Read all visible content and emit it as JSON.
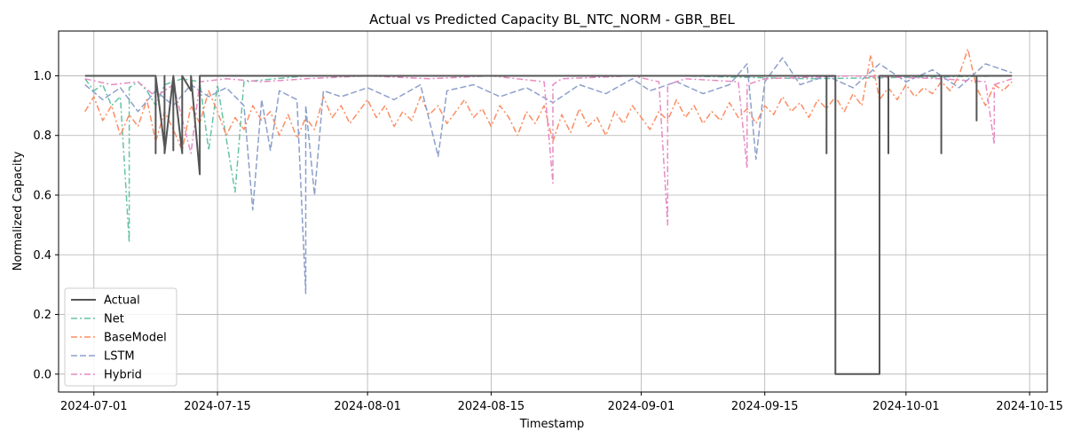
{
  "chart_data": {
    "type": "line",
    "title": "Actual vs Predicted Capacity BL_NTC_NORM - GBR_BEL",
    "xlabel": "Timestamp",
    "ylabel": "Normalized Capacity",
    "xlim": [
      "2024-06-27",
      "2024-10-17"
    ],
    "ylim": [
      -0.06,
      1.15
    ],
    "x_ticks": [
      "2024-07-01",
      "2024-07-15",
      "2024-08-01",
      "2024-08-15",
      "2024-09-01",
      "2024-09-15",
      "2024-10-01",
      "2024-10-15"
    ],
    "y_ticks": [
      0.0,
      0.2,
      0.4,
      0.6,
      0.8,
      1.0
    ],
    "y_tick_labels": [
      "0.0",
      "0.2",
      "0.4",
      "0.6",
      "0.8",
      "1.0"
    ],
    "grid": true,
    "legend_position": "lower-left",
    "series": [
      {
        "name": "Actual",
        "color": "#555555",
        "style": "solid",
        "points": [
          [
            "2024-06-30",
            1.0
          ],
          [
            "2024-07-08",
            1.0
          ],
          [
            "2024-07-08",
            0.74
          ],
          [
            "2024-07-08",
            1.0
          ],
          [
            "2024-07-09",
            0.76
          ],
          [
            "2024-07-09",
            1.0
          ],
          [
            "2024-07-09",
            0.74
          ],
          [
            "2024-07-10",
            1.0
          ],
          [
            "2024-07-10",
            0.75
          ],
          [
            "2024-07-10",
            1.0
          ],
          [
            "2024-07-11",
            0.74
          ],
          [
            "2024-07-11",
            1.0
          ],
          [
            "2024-07-12",
            0.95
          ],
          [
            "2024-07-12",
            1.0
          ],
          [
            "2024-07-13",
            0.67
          ],
          [
            "2024-07-13",
            1.0
          ],
          [
            "2024-09-22",
            1.0
          ],
          [
            "2024-09-22",
            0.74
          ],
          [
            "2024-09-22",
            1.0
          ],
          [
            "2024-09-23",
            1.0
          ],
          [
            "2024-09-23",
            0.0
          ],
          [
            "2024-09-28",
            0.0
          ],
          [
            "2024-09-28",
            1.0
          ],
          [
            "2024-09-29",
            1.0
          ],
          [
            "2024-09-29",
            0.74
          ],
          [
            "2024-09-29",
            1.0
          ],
          [
            "2024-10-05",
            1.0
          ],
          [
            "2024-10-05",
            0.74
          ],
          [
            "2024-10-05",
            1.0
          ],
          [
            "2024-10-09",
            1.0
          ],
          [
            "2024-10-09",
            0.85
          ],
          [
            "2024-10-09",
            1.0
          ],
          [
            "2024-10-13",
            1.0
          ]
        ]
      },
      {
        "name": "Net",
        "color": "#66c2a5",
        "style": "dashdot",
        "points": [
          [
            "2024-06-30",
            0.99
          ],
          [
            "2024-07-01",
            0.95
          ],
          [
            "2024-07-02",
            0.97
          ],
          [
            "2024-07-03",
            0.9
          ],
          [
            "2024-07-04",
            0.93
          ],
          [
            "2024-07-05",
            0.44
          ],
          [
            "2024-07-05",
            0.96
          ],
          [
            "2024-07-06",
            0.98
          ],
          [
            "2024-07-07",
            0.95
          ],
          [
            "2024-07-08",
            0.9
          ],
          [
            "2024-07-09",
            0.97
          ],
          [
            "2024-07-11",
            0.99
          ],
          [
            "2024-07-13",
            0.98
          ],
          [
            "2024-07-14",
            0.75
          ],
          [
            "2024-07-15",
            0.97
          ],
          [
            "2024-07-17",
            0.61
          ],
          [
            "2024-07-18",
            0.98
          ],
          [
            "2024-07-25",
            1.0
          ],
          [
            "2024-08-15",
            1.0
          ],
          [
            "2024-09-05",
            1.0
          ],
          [
            "2024-09-20",
            0.99
          ],
          [
            "2024-10-13",
            1.0
          ]
        ]
      },
      {
        "name": "BaseModel",
        "color": "#fc8d62",
        "style": "dashdot",
        "points": [
          [
            "2024-06-30",
            0.88
          ],
          [
            "2024-07-01",
            0.93
          ],
          [
            "2024-07-02",
            0.85
          ],
          [
            "2024-07-03",
            0.9
          ],
          [
            "2024-07-04",
            0.8
          ],
          [
            "2024-07-05",
            0.87
          ],
          [
            "2024-07-06",
            0.83
          ],
          [
            "2024-07-07",
            0.92
          ],
          [
            "2024-07-08",
            0.78
          ],
          [
            "2024-07-09",
            0.88
          ],
          [
            "2024-07-10",
            0.82
          ],
          [
            "2024-07-11",
            0.75
          ],
          [
            "2024-07-12",
            0.9
          ],
          [
            "2024-07-13",
            0.84
          ],
          [
            "2024-07-14",
            0.95
          ],
          [
            "2024-07-15",
            0.88
          ],
          [
            "2024-07-16",
            0.8
          ],
          [
            "2024-07-17",
            0.86
          ],
          [
            "2024-07-18",
            0.82
          ],
          [
            "2024-07-19",
            0.9
          ],
          [
            "2024-07-20",
            0.85
          ],
          [
            "2024-07-21",
            0.88
          ],
          [
            "2024-07-22",
            0.8
          ],
          [
            "2024-07-23",
            0.87
          ],
          [
            "2024-07-24",
            0.79
          ],
          [
            "2024-07-25",
            0.86
          ],
          [
            "2024-07-26",
            0.82
          ],
          [
            "2024-07-27",
            0.93
          ],
          [
            "2024-07-28",
            0.86
          ],
          [
            "2024-07-29",
            0.9
          ],
          [
            "2024-07-30",
            0.84
          ],
          [
            "2024-07-31",
            0.88
          ],
          [
            "2024-08-01",
            0.92
          ],
          [
            "2024-08-02",
            0.86
          ],
          [
            "2024-08-03",
            0.9
          ],
          [
            "2024-08-04",
            0.83
          ],
          [
            "2024-08-05",
            0.88
          ],
          [
            "2024-08-06",
            0.85
          ],
          [
            "2024-08-07",
            0.93
          ],
          [
            "2024-08-08",
            0.87
          ],
          [
            "2024-08-09",
            0.9
          ],
          [
            "2024-08-10",
            0.84
          ],
          [
            "2024-08-11",
            0.88
          ],
          [
            "2024-08-12",
            0.92
          ],
          [
            "2024-08-13",
            0.86
          ],
          [
            "2024-08-14",
            0.89
          ],
          [
            "2024-08-15",
            0.83
          ],
          [
            "2024-08-16",
            0.9
          ],
          [
            "2024-08-17",
            0.86
          ],
          [
            "2024-08-18",
            0.8
          ],
          [
            "2024-08-19",
            0.88
          ],
          [
            "2024-08-20",
            0.84
          ],
          [
            "2024-08-21",
            0.9
          ],
          [
            "2024-08-22",
            0.78
          ],
          [
            "2024-08-23",
            0.87
          ],
          [
            "2024-08-24",
            0.81
          ],
          [
            "2024-08-25",
            0.89
          ],
          [
            "2024-08-26",
            0.83
          ],
          [
            "2024-08-27",
            0.86
          ],
          [
            "2024-08-28",
            0.8
          ],
          [
            "2024-08-29",
            0.88
          ],
          [
            "2024-08-30",
            0.84
          ],
          [
            "2024-08-31",
            0.9
          ],
          [
            "2024-09-01",
            0.86
          ],
          [
            "2024-09-02",
            0.82
          ],
          [
            "2024-09-03",
            0.88
          ],
          [
            "2024-09-04",
            0.85
          ],
          [
            "2024-09-05",
            0.92
          ],
          [
            "2024-09-06",
            0.86
          ],
          [
            "2024-09-07",
            0.9
          ],
          [
            "2024-09-08",
            0.84
          ],
          [
            "2024-09-09",
            0.88
          ],
          [
            "2024-09-10",
            0.85
          ],
          [
            "2024-09-11",
            0.91
          ],
          [
            "2024-09-12",
            0.86
          ],
          [
            "2024-09-13",
            0.89
          ],
          [
            "2024-09-14",
            0.84
          ],
          [
            "2024-09-15",
            0.9
          ],
          [
            "2024-09-16",
            0.87
          ],
          [
            "2024-09-17",
            0.93
          ],
          [
            "2024-09-18",
            0.88
          ],
          [
            "2024-09-19",
            0.91
          ],
          [
            "2024-09-20",
            0.86
          ],
          [
            "2024-09-21",
            0.92
          ],
          [
            "2024-09-22",
            0.89
          ],
          [
            "2024-09-23",
            0.93
          ],
          [
            "2024-09-24",
            0.88
          ],
          [
            "2024-09-25",
            0.94
          ],
          [
            "2024-09-26",
            0.9
          ],
          [
            "2024-09-27",
            1.07
          ],
          [
            "2024-09-28",
            0.92
          ],
          [
            "2024-09-29",
            0.96
          ],
          [
            "2024-09-30",
            0.92
          ],
          [
            "2024-10-01",
            0.97
          ],
          [
            "2024-10-02",
            0.93
          ],
          [
            "2024-10-03",
            0.96
          ],
          [
            "2024-10-04",
            0.94
          ],
          [
            "2024-10-05",
            0.98
          ],
          [
            "2024-10-06",
            0.95
          ],
          [
            "2024-10-07",
            1.0
          ],
          [
            "2024-10-08",
            1.09
          ],
          [
            "2024-10-09",
            0.96
          ],
          [
            "2024-10-10",
            0.9
          ],
          [
            "2024-10-11",
            0.97
          ],
          [
            "2024-10-12",
            0.95
          ],
          [
            "2024-10-13",
            0.98
          ]
        ]
      },
      {
        "name": "LSTM",
        "color": "#8da0cb",
        "style": "dashed",
        "points": [
          [
            "2024-06-30",
            0.97
          ],
          [
            "2024-07-02",
            0.92
          ],
          [
            "2024-07-04",
            0.96
          ],
          [
            "2024-07-06",
            0.88
          ],
          [
            "2024-07-08",
            0.95
          ],
          [
            "2024-07-10",
            0.9
          ],
          [
            "2024-07-12",
            0.97
          ],
          [
            "2024-07-14",
            0.93
          ],
          [
            "2024-07-16",
            0.96
          ],
          [
            "2024-07-18",
            0.9
          ],
          [
            "2024-07-19",
            0.55
          ],
          [
            "2024-07-20",
            0.92
          ],
          [
            "2024-07-21",
            0.75
          ],
          [
            "2024-07-22",
            0.95
          ],
          [
            "2024-07-24",
            0.92
          ],
          [
            "2024-07-25",
            0.27
          ],
          [
            "2024-07-25",
            0.9
          ],
          [
            "2024-07-26",
            0.6
          ],
          [
            "2024-07-27",
            0.95
          ],
          [
            "2024-07-29",
            0.93
          ],
          [
            "2024-08-01",
            0.96
          ],
          [
            "2024-08-04",
            0.92
          ],
          [
            "2024-08-07",
            0.97
          ],
          [
            "2024-08-09",
            0.73
          ],
          [
            "2024-08-10",
            0.95
          ],
          [
            "2024-08-13",
            0.97
          ],
          [
            "2024-08-16",
            0.93
          ],
          [
            "2024-08-19",
            0.96
          ],
          [
            "2024-08-22",
            0.91
          ],
          [
            "2024-08-25",
            0.97
          ],
          [
            "2024-08-28",
            0.94
          ],
          [
            "2024-08-31",
            0.99
          ],
          [
            "2024-09-02",
            0.95
          ],
          [
            "2024-09-05",
            0.98
          ],
          [
            "2024-09-08",
            0.94
          ],
          [
            "2024-09-11",
            0.97
          ],
          [
            "2024-09-13",
            1.04
          ],
          [
            "2024-09-14",
            0.72
          ],
          [
            "2024-09-15",
            0.98
          ],
          [
            "2024-09-17",
            1.06
          ],
          [
            "2024-09-19",
            0.97
          ],
          [
            "2024-09-22",
            1.0
          ],
          [
            "2024-09-25",
            0.96
          ],
          [
            "2024-09-28",
            1.04
          ],
          [
            "2024-10-01",
            0.98
          ],
          [
            "2024-10-04",
            1.02
          ],
          [
            "2024-10-07",
            0.96
          ],
          [
            "2024-10-10",
            1.04
          ],
          [
            "2024-10-13",
            1.01
          ]
        ]
      },
      {
        "name": "Hybrid",
        "color": "#e78ac3",
        "style": "dashdot",
        "points": [
          [
            "2024-06-30",
            0.99
          ],
          [
            "2024-07-03",
            0.97
          ],
          [
            "2024-07-06",
            0.98
          ],
          [
            "2024-07-08",
            0.93
          ],
          [
            "2024-07-10",
            0.97
          ],
          [
            "2024-07-12",
            0.74
          ],
          [
            "2024-07-13",
            0.98
          ],
          [
            "2024-07-16",
            0.99
          ],
          [
            "2024-07-20",
            0.98
          ],
          [
            "2024-07-25",
            0.99
          ],
          [
            "2024-08-01",
            1.0
          ],
          [
            "2024-08-08",
            0.99
          ],
          [
            "2024-08-15",
            1.0
          ],
          [
            "2024-08-21",
            0.98
          ],
          [
            "2024-08-22",
            0.64
          ],
          [
            "2024-08-22",
            0.97
          ],
          [
            "2024-08-23",
            0.99
          ],
          [
            "2024-08-31",
            1.0
          ],
          [
            "2024-09-03",
            0.98
          ],
          [
            "2024-09-04",
            0.5
          ],
          [
            "2024-09-04",
            0.97
          ],
          [
            "2024-09-06",
            0.99
          ],
          [
            "2024-09-12",
            0.98
          ],
          [
            "2024-09-13",
            0.69
          ],
          [
            "2024-09-13",
            0.97
          ],
          [
            "2024-09-15",
            0.99
          ],
          [
            "2024-09-25",
            1.0
          ],
          [
            "2024-10-05",
            0.99
          ],
          [
            "2024-10-10",
            0.98
          ],
          [
            "2024-10-11",
            0.77
          ],
          [
            "2024-10-11",
            0.97
          ],
          [
            "2024-10-13",
            0.99
          ]
        ]
      }
    ]
  }
}
